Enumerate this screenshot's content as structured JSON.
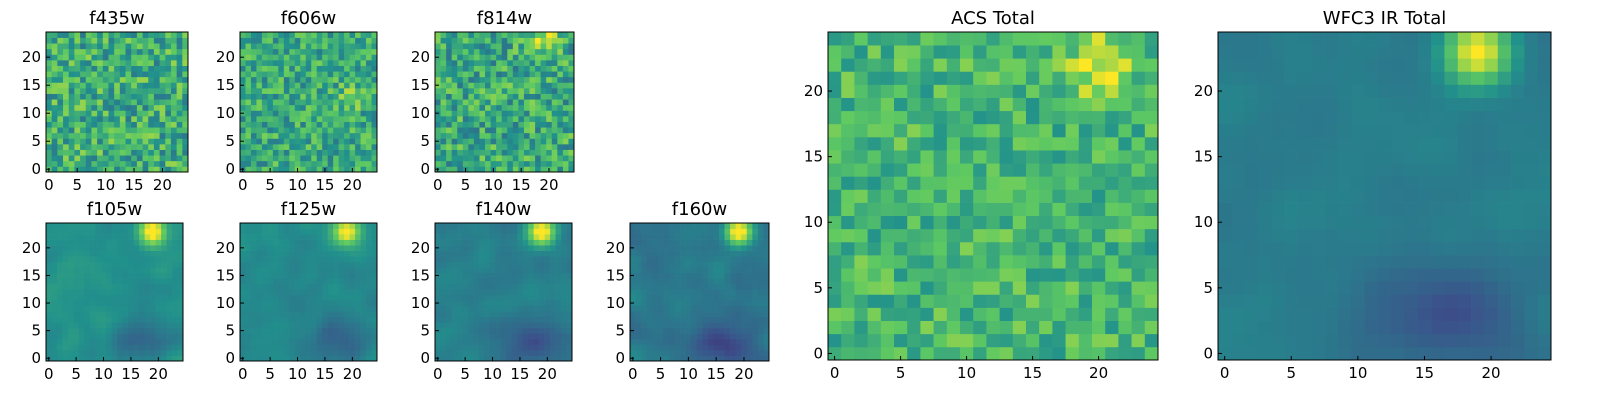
{
  "figure": {
    "colormap": "viridis",
    "colormap_stops": [
      "#440154",
      "#3b528b",
      "#21918c",
      "#5ec962",
      "#fde725"
    ]
  },
  "chart_data": [
    {
      "type": "heatmap",
      "title": "f435w",
      "grid": false,
      "size": [
        25,
        25
      ],
      "xlim": [
        0,
        24
      ],
      "ylim": [
        0,
        24
      ],
      "xticks": [
        "0",
        "5",
        "10",
        "15",
        "20"
      ],
      "yticks": [
        "0",
        "5",
        "10",
        "15",
        "20"
      ],
      "pattern": "noise",
      "level": 0.62,
      "spread": 0.2,
      "hotspot": null
    },
    {
      "type": "heatmap",
      "title": "f606w",
      "grid": false,
      "size": [
        25,
        25
      ],
      "xlim": [
        0,
        24
      ],
      "ylim": [
        0,
        24
      ],
      "xticks": [
        "0",
        "5",
        "10",
        "15",
        "20"
      ],
      "yticks": [
        "0",
        "5",
        "10",
        "15",
        "20"
      ],
      "pattern": "noise",
      "level": 0.6,
      "spread": 0.18,
      "hotspot": [
        20,
        13,
        0.2
      ]
    },
    {
      "type": "heatmap",
      "title": "f814w",
      "grid": false,
      "size": [
        25,
        25
      ],
      "xlim": [
        0,
        24
      ],
      "ylim": [
        0,
        24
      ],
      "xticks": [
        "0",
        "5",
        "10",
        "15",
        "20"
      ],
      "yticks": [
        "0",
        "5",
        "10",
        "15",
        "20"
      ],
      "pattern": "noise",
      "level": 0.6,
      "spread": 0.2,
      "hotspot": [
        19,
        23,
        0.3
      ]
    },
    {
      "type": "heatmap",
      "title": "f105w",
      "grid": false,
      "size": [
        25,
        25
      ],
      "xlim": [
        0,
        24
      ],
      "ylim": [
        0,
        24
      ],
      "xticks": [
        "0",
        "5",
        "10",
        "15",
        "20"
      ],
      "yticks": [
        "0",
        "5",
        "10",
        "15",
        "20"
      ],
      "pattern": "smooth",
      "level": 0.5,
      "spread": 0.08,
      "hotspot": [
        19,
        23,
        0.55
      ]
    },
    {
      "type": "heatmap",
      "title": "f125w",
      "grid": false,
      "size": [
        25,
        25
      ],
      "xlim": [
        0,
        24
      ],
      "ylim": [
        0,
        24
      ],
      "xticks": [
        "0",
        "5",
        "10",
        "15",
        "20"
      ],
      "yticks": [
        "0",
        "5",
        "10",
        "15",
        "20"
      ],
      "pattern": "smooth",
      "level": 0.47,
      "spread": 0.08,
      "hotspot": [
        19,
        23,
        0.6
      ]
    },
    {
      "type": "heatmap",
      "title": "f140w",
      "grid": false,
      "size": [
        25,
        25
      ],
      "xlim": [
        0,
        24
      ],
      "ylim": [
        0,
        24
      ],
      "xticks": [
        "0",
        "5",
        "10",
        "15",
        "20"
      ],
      "yticks": [
        "0",
        "5",
        "10",
        "15",
        "20"
      ],
      "pattern": "smooth",
      "level": 0.43,
      "spread": 0.08,
      "hotspot": [
        19,
        23,
        0.65
      ]
    },
    {
      "type": "heatmap",
      "title": "f160w",
      "grid": false,
      "size": [
        25,
        25
      ],
      "xlim": [
        0,
        24
      ],
      "ylim": [
        0,
        24
      ],
      "xticks": [
        "0",
        "5",
        "10",
        "15",
        "20"
      ],
      "yticks": [
        "0",
        "5",
        "10",
        "15",
        "20"
      ],
      "pattern": "smooth",
      "level": 0.4,
      "spread": 0.08,
      "hotspot": [
        19,
        23,
        0.7
      ]
    },
    {
      "type": "heatmap",
      "title": "ACS Total",
      "grid": false,
      "size": [
        25,
        25
      ],
      "xlim": [
        0,
        24
      ],
      "ylim": [
        0,
        24
      ],
      "xticks": [
        "0",
        "5",
        "10",
        "15",
        "20"
      ],
      "yticks": [
        "0",
        "5",
        "10",
        "15",
        "20"
      ],
      "pattern": "noise",
      "level": 0.66,
      "spread": 0.14,
      "hotspot": [
        20,
        22,
        0.3
      ]
    },
    {
      "type": "heatmap",
      "title": "WFC3 IR Total",
      "grid": false,
      "size": [
        25,
        25
      ],
      "xlim": [
        0,
        24
      ],
      "ylim": [
        0,
        24
      ],
      "xticks": [
        "0",
        "5",
        "10",
        "15",
        "20"
      ],
      "yticks": [
        "0",
        "5",
        "10",
        "15",
        "20"
      ],
      "pattern": "smooth",
      "level": 0.42,
      "spread": 0.05,
      "hotspot": [
        19,
        23,
        0.6
      ]
    }
  ]
}
